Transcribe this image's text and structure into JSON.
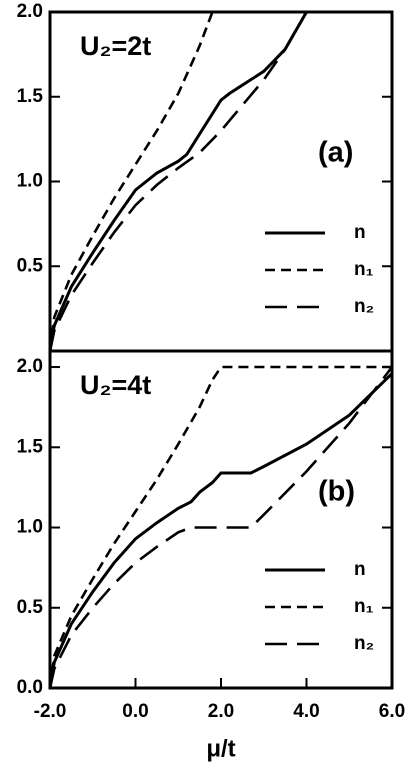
{
  "chart_data": [
    {
      "type": "line",
      "annotation": "U₂=2t",
      "panel_label": "(a)",
      "xlim": [
        -2,
        6
      ],
      "ylim": [
        0,
        2
      ],
      "yticks": [
        {
          "value": 0.5,
          "label": "0.5"
        },
        {
          "value": 1,
          "label": "1.0"
        },
        {
          "value": 1.5,
          "label": "1.5"
        },
        {
          "value": 2,
          "label": "2.0"
        }
      ],
      "legend": "lower right",
      "series": [
        {
          "name": "n",
          "color": "#000000",
          "dash": "solid",
          "x": [
            -2,
            -1.9,
            -1.5,
            -1,
            -0.5,
            0,
            0.5,
            1,
            1.2,
            1.5,
            2,
            2.2,
            3,
            3.5,
            4
          ],
          "values": [
            0,
            0.15,
            0.38,
            0.58,
            0.77,
            0.95,
            1.05,
            1.12,
            1.16,
            1.28,
            1.48,
            1.52,
            1.65,
            1.78,
            2
          ]
        },
        {
          "name": "n₁",
          "color": "#000000",
          "dash": "short",
          "x": [
            -2,
            -1.9,
            -1.5,
            -1,
            -0.5,
            0,
            0.5,
            1,
            1.5,
            1.8
          ],
          "values": [
            0,
            0.2,
            0.45,
            0.68,
            0.9,
            1.1,
            1.3,
            1.52,
            1.8,
            2
          ]
        },
        {
          "name": "n₂",
          "color": "#000000",
          "dash": "long",
          "x": [
            -2,
            -1.9,
            -1.5,
            -1,
            -0.5,
            0,
            0.5,
            1,
            1.5,
            2,
            2.5,
            3,
            3.5,
            4
          ],
          "values": [
            0,
            0.12,
            0.33,
            0.52,
            0.7,
            0.86,
            0.98,
            1.08,
            1.17,
            1.3,
            1.45,
            1.6,
            1.78,
            2
          ]
        }
      ]
    },
    {
      "type": "line",
      "annotation": "U₂=4t",
      "panel_label": "(b)",
      "xlabel": "μ/t",
      "xlim": [
        -2,
        6
      ],
      "ylim": [
        0,
        2.1
      ],
      "xticks": [
        {
          "value": -2,
          "label": "-2.0"
        },
        {
          "value": 0,
          "label": "0.0"
        },
        {
          "value": 2,
          "label": "2.0"
        },
        {
          "value": 4,
          "label": "4.0"
        },
        {
          "value": 6,
          "label": "6.0"
        }
      ],
      "yticks": [
        {
          "value": 0,
          "label": "0.0"
        },
        {
          "value": 0.5,
          "label": "0.5"
        },
        {
          "value": 1,
          "label": "1.0"
        },
        {
          "value": 1.5,
          "label": "1.5"
        },
        {
          "value": 2,
          "label": "2.0"
        }
      ],
      "legend": "lower right",
      "series": [
        {
          "name": "n",
          "color": "#000000",
          "dash": "solid",
          "x": [
            -2,
            -1.9,
            -1.5,
            -1,
            -0.5,
            0,
            0.5,
            1,
            1.3,
            1.5,
            1.8,
            2,
            2.7,
            3,
            4,
            5,
            6
          ],
          "values": [
            0,
            0.16,
            0.4,
            0.6,
            0.78,
            0.93,
            1.03,
            1.12,
            1.16,
            1.22,
            1.28,
            1.34,
            1.34,
            1.38,
            1.52,
            1.7,
            1.96
          ]
        },
        {
          "name": "n₁",
          "color": "#000000",
          "dash": "short",
          "x": [
            -2,
            -1.9,
            -1.5,
            -1,
            -0.5,
            0,
            0.5,
            1,
            1.5,
            1.8,
            2,
            6
          ],
          "values": [
            0,
            0.2,
            0.45,
            0.68,
            0.9,
            1.1,
            1.3,
            1.52,
            1.75,
            1.92,
            2,
            2
          ]
        },
        {
          "name": "n₂",
          "color": "#000000",
          "dash": "long",
          "x": [
            -2,
            -1.9,
            -1.5,
            -1,
            -0.5,
            0,
            0.5,
            1,
            1.3,
            2.7,
            3,
            4,
            5,
            6
          ],
          "values": [
            0,
            0.12,
            0.33,
            0.5,
            0.65,
            0.78,
            0.88,
            0.97,
            1,
            1,
            1.08,
            1.35,
            1.65,
            2
          ]
        }
      ]
    }
  ]
}
